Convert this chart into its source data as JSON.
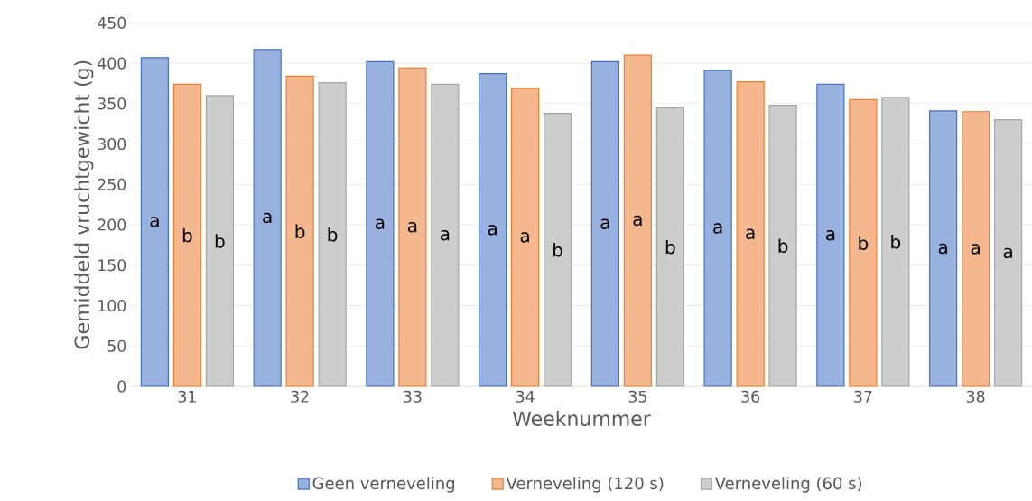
{
  "chart_data": {
    "type": "bar",
    "xlabel": "Weeknummer",
    "ylabel": "Gemiddeld vruchtgewicht (g)",
    "categories": [
      "31",
      "32",
      "33",
      "34",
      "35",
      "36",
      "37",
      "38"
    ],
    "series": [
      {
        "name": "Geen verneveling",
        "color": "#4472c4",
        "values": [
          407,
          417,
          402,
          387,
          402,
          391,
          374,
          341
        ],
        "value_labels": [
          "a",
          "a",
          "a",
          "a",
          "a",
          "a",
          "a",
          "a"
        ]
      },
      {
        "name": "Verneveling (120 s)",
        "color": "#ed7d31",
        "values": [
          374,
          384,
          394,
          369,
          410,
          377,
          355,
          340
        ],
        "value_labels": [
          "b",
          "b",
          "a",
          "a",
          "a",
          "a",
          "b",
          "a"
        ]
      },
      {
        "name": "Verneveling (60 s)",
        "color": "#a5a5a5",
        "values": [
          360,
          376,
          374,
          338,
          345,
          348,
          358,
          330
        ],
        "value_labels": [
          "b",
          "b",
          "a",
          "b",
          "b",
          "b",
          "b",
          "a"
        ]
      }
    ],
    "ylim": [
      0,
      450
    ],
    "yticks": [
      0,
      50,
      100,
      150,
      200,
      250,
      300,
      350,
      400,
      450
    ],
    "grid": "y",
    "legend": "bottom"
  }
}
